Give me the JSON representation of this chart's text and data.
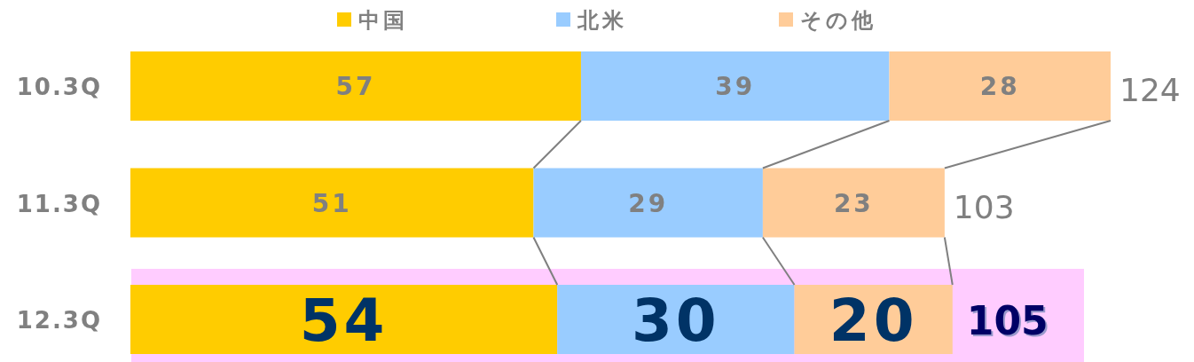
{
  "chart_data": {
    "type": "bar",
    "orientation": "horizontal",
    "stacked": true,
    "categories": [
      "10.3Q",
      "11.3Q",
      "12.3Q"
    ],
    "series": [
      {
        "name": "中国",
        "color": "#ffcc00",
        "values": [
          57,
          51,
          54
        ]
      },
      {
        "name": "北米",
        "color": "#99ccff",
        "values": [
          39,
          29,
          30
        ]
      },
      {
        "name": "その他",
        "color": "#ffcc99",
        "values": [
          28,
          23,
          20
        ]
      }
    ],
    "data_labels": true,
    "totals": [
      "124",
      "103",
      "105"
    ],
    "legend": "top",
    "bands": [
      {
        "axis": "y",
        "from": "12.3Q",
        "to": "12.3Q",
        "color": "#ffccff"
      }
    ]
  }
}
